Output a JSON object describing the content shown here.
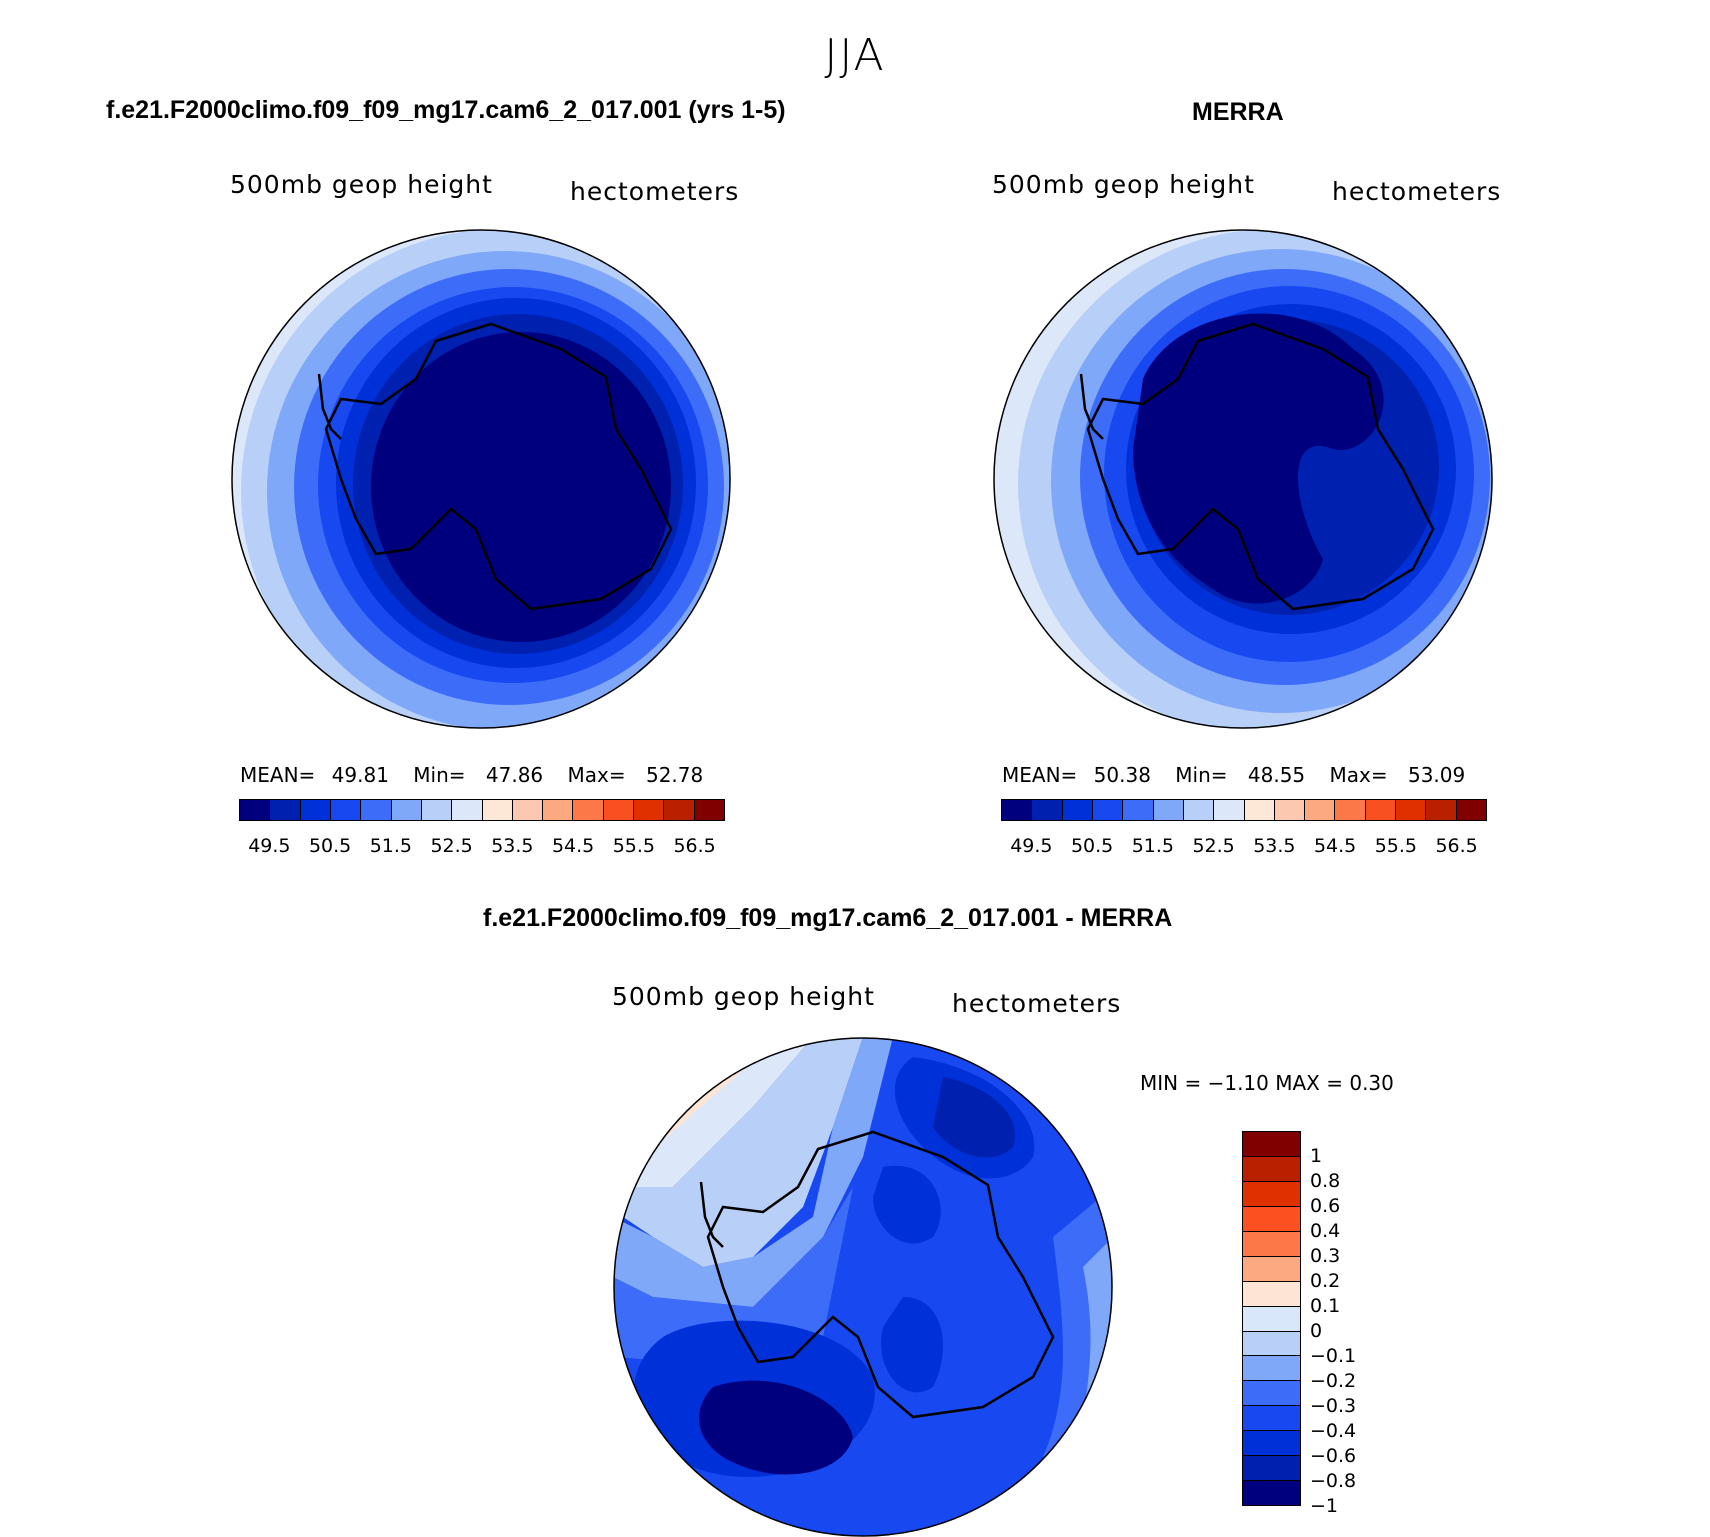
{
  "title": "JJA",
  "panels": {
    "model": {
      "title": "f.e21.F2000climo.f09_f09_mg17.cam6_2_017.001 (yrs 1-5)",
      "left_label": "500mb  geop  height",
      "right_label": "hectometers",
      "stats": {
        "mean_label": "MEAN=",
        "mean": "49.81",
        "min_label": "Min=",
        "min": "47.86",
        "max_label": "Max=",
        "max": "52.78"
      }
    },
    "obs": {
      "title": "MERRA",
      "left_label": "500mb  geop  height",
      "right_label": "hectometers",
      "stats": {
        "mean_label": "MEAN=",
        "mean": "50.38",
        "min_label": "Min=",
        "min": "48.55",
        "max_label": "Max=",
        "max": "53.09"
      }
    },
    "diff": {
      "title": "f.e21.F2000climo.f09_f09_mg17.cam6_2_017.001 - MERRA",
      "left_label": "500mb  geop  height",
      "right_label": "hectometers",
      "minmax": "MIN =   −1.10  MAX =     0.30"
    }
  },
  "colors": {
    "abs_scale": [
      "#00007f",
      "#0020b0",
      "#0030d8",
      "#1848f0",
      "#3c6cf8",
      "#80a8f8",
      "#b8d0f8",
      "#dce8fa",
      "#fde8d8",
      "#fcc8b0",
      "#fca880",
      "#fc7848",
      "#f85020",
      "#e03000",
      "#b82000",
      "#800000"
    ],
    "diff_scale": [
      "#800000",
      "#b82000",
      "#e03000",
      "#fc5020",
      "#fc7848",
      "#fca880",
      "#fde4d4",
      "#d8e8fa",
      "#b8d0f8",
      "#80a8f8",
      "#3c6cf8",
      "#1848f0",
      "#0030d8",
      "#0020b0",
      "#00007f"
    ]
  },
  "chart_data": [
    {
      "type": "heatmap",
      "title": "f.e21.F2000climo.f09_f09_mg17.cam6_2_017.001 (yrs 1-5)",
      "variable": "500mb geop height",
      "units": "hectometers",
      "projection": "south polar stereographic",
      "mean": 49.81,
      "min": 47.86,
      "max": 52.78,
      "colorbar_ticks": [
        "49.5",
        "50.5",
        "51.5",
        "52.5",
        "53.5",
        "54.5",
        "55.5",
        "56.5"
      ]
    },
    {
      "type": "heatmap",
      "title": "MERRA",
      "variable": "500mb geop height",
      "units": "hectometers",
      "projection": "south polar stereographic",
      "mean": 50.38,
      "min": 48.55,
      "max": 53.09,
      "colorbar_ticks": [
        "49.5",
        "50.5",
        "51.5",
        "52.5",
        "53.5",
        "54.5",
        "55.5",
        "56.5"
      ]
    },
    {
      "type": "heatmap",
      "title": "f.e21.F2000climo.f09_f09_mg17.cam6_2_017.001 - MERRA",
      "variable": "500mb geop height",
      "units": "hectometers",
      "projection": "south polar stereographic",
      "min": -1.1,
      "max": 0.3,
      "colorbar_ticks": [
        "1",
        "0.8",
        "0.6",
        "0.4",
        "0.3",
        "0.2",
        "0.1",
        "0",
        "−0.1",
        "−0.2",
        "−0.3",
        "−0.4",
        "−0.6",
        "−0.8",
        "−1"
      ]
    }
  ]
}
